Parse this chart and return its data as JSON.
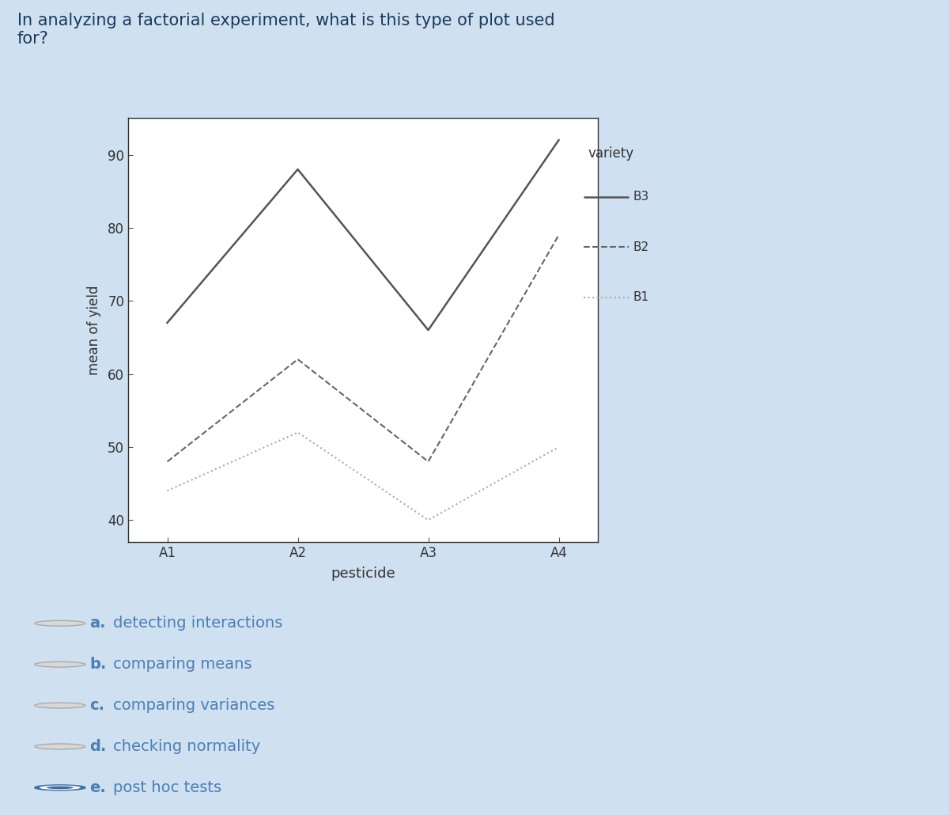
{
  "question_text": "In analyzing a factorial experiment, what is this type of plot used\nfor?",
  "bg_color": "#cfe0f0",
  "plot_outer_color": "#ffffff",
  "plot_inner_color": "#ffffff",
  "xlabel": "pesticide",
  "ylabel": "mean of yield",
  "x_labels": [
    "A1",
    "A2",
    "A3",
    "A4"
  ],
  "x_values": [
    1,
    2,
    3,
    4
  ],
  "ylim": [
    37,
    95
  ],
  "yticks": [
    40,
    50,
    60,
    70,
    80,
    90
  ],
  "legend_title": "variety",
  "series": [
    {
      "label": "B3",
      "values": [
        67,
        88,
        66,
        92
      ],
      "linestyle": "solid",
      "color": "#555555",
      "linewidth": 1.8
    },
    {
      "label": "B2",
      "values": [
        48,
        62,
        48,
        79
      ],
      "linestyle": "dashed",
      "color": "#666666",
      "linewidth": 1.5
    },
    {
      "label": "B1",
      "values": [
        44,
        52,
        40,
        50
      ],
      "linestyle": "dotted",
      "color": "#aaaaaa",
      "linewidth": 1.5
    }
  ],
  "options": [
    {
      "letter": "a",
      "text": "detecting interactions",
      "selected": false
    },
    {
      "letter": "b",
      "text": "comparing means",
      "selected": false
    },
    {
      "letter": "c",
      "text": "comparing variances",
      "selected": false
    },
    {
      "letter": "d",
      "text": "checking normality",
      "selected": false
    },
    {
      "letter": "e",
      "text": "post hoc tests",
      "selected": true
    }
  ],
  "option_color": "#4a7fb5",
  "option_fontsize": 14,
  "question_fontsize": 15,
  "question_color": "#1a3a5c"
}
